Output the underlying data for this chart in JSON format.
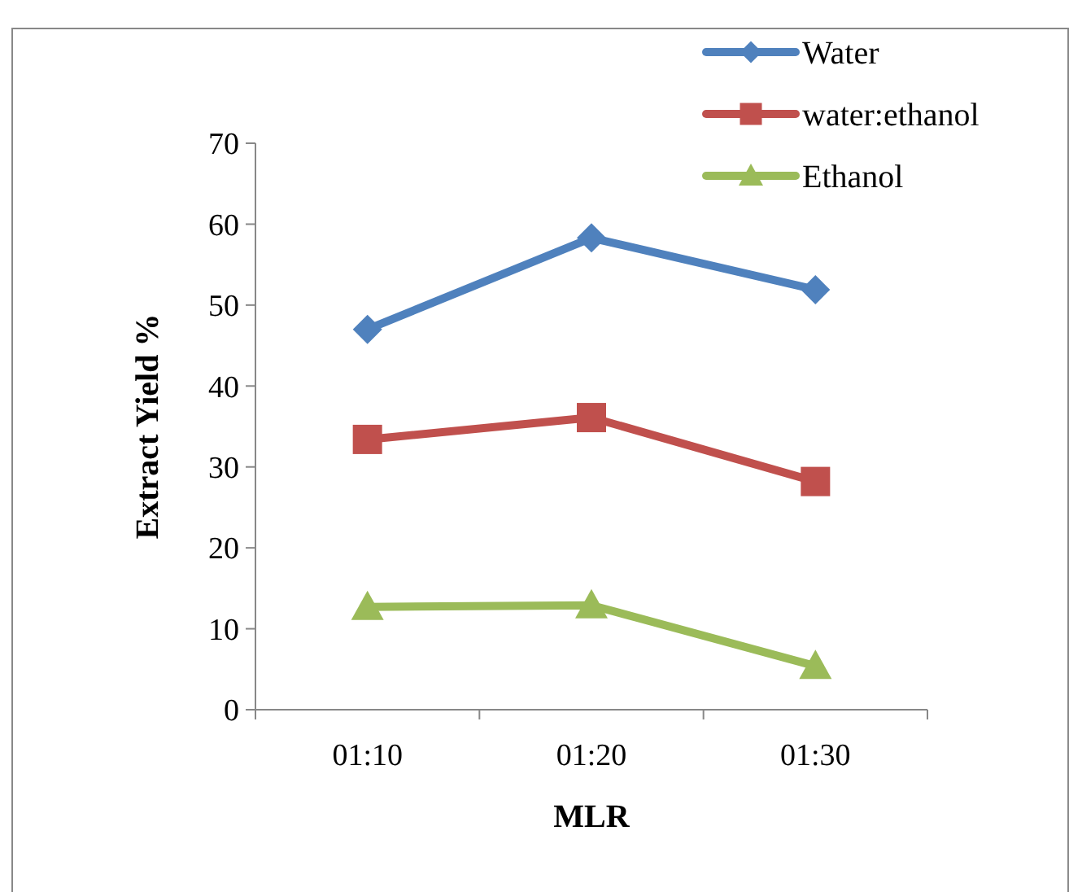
{
  "chart_data": {
    "type": "line",
    "xlabel": "MLR",
    "ylabel": "Extract Yield %",
    "categories": [
      "01:10",
      "01:20",
      "01:30"
    ],
    "series": [
      {
        "name": "Water",
        "color": "#4f81bd",
        "marker": "diamond",
        "values": [
          47,
          58.3,
          51.9
        ]
      },
      {
        "name": "water:ethanol",
        "color": "#c0504d",
        "marker": "square",
        "values": [
          33.4,
          36.1,
          28.2
        ]
      },
      {
        "name": "Ethanol",
        "color": "#9bbb59",
        "marker": "triangle",
        "values": [
          12.7,
          12.9,
          5.4
        ]
      }
    ],
    "ylim": [
      0,
      70
    ],
    "yticks": [
      0,
      10,
      20,
      30,
      40,
      50,
      60,
      70
    ],
    "grid": false,
    "legend": "top right",
    "line_style": "solid"
  }
}
